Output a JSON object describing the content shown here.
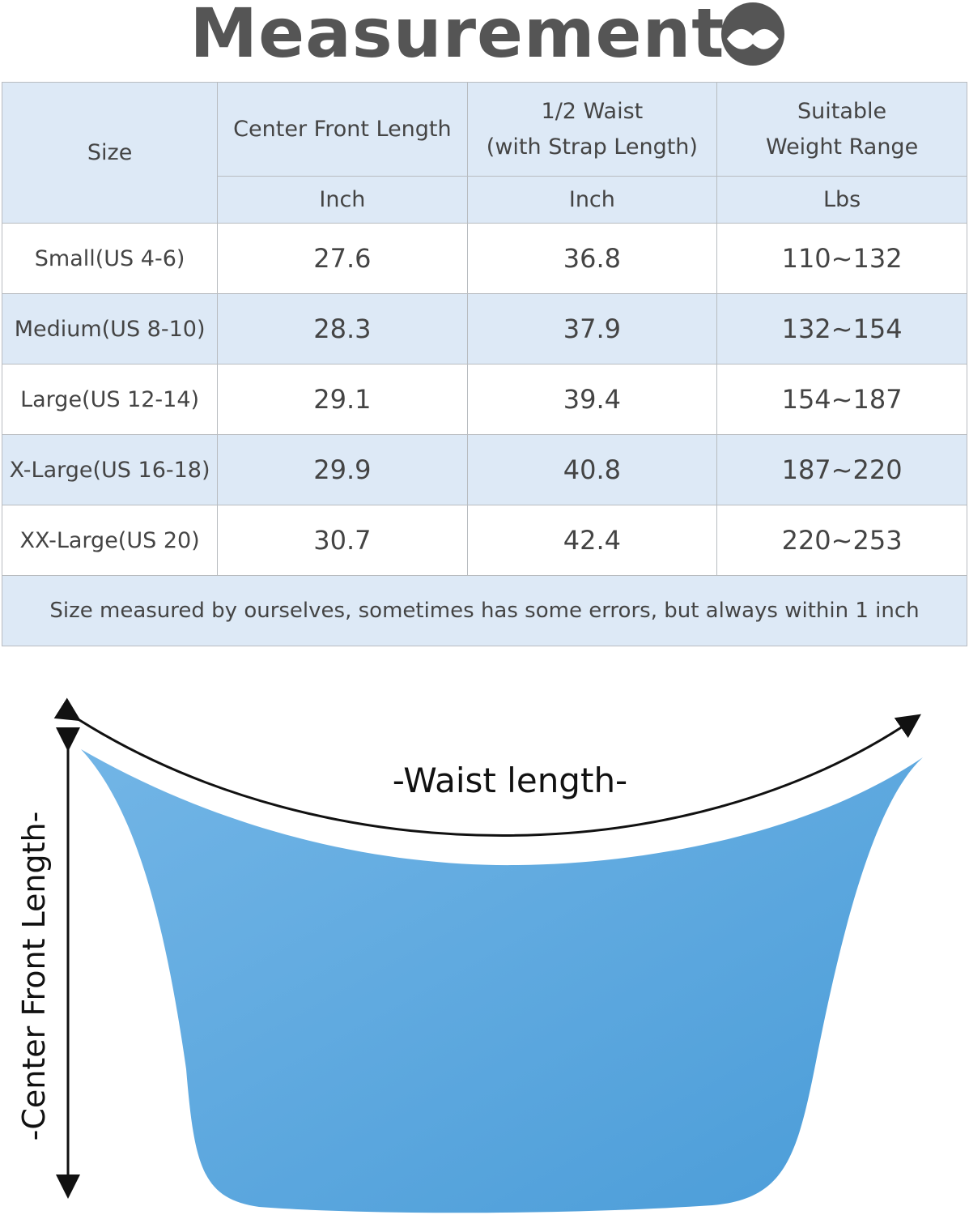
{
  "header": {
    "title": "Measurement"
  },
  "table": {
    "columns": [
      {
        "lines": [
          "Size"
        ],
        "unit": null
      },
      {
        "lines": [
          "Center Front Length"
        ],
        "unit": "Inch"
      },
      {
        "lines": [
          "1/2 Waist",
          "(with Strap Length)"
        ],
        "unit": "Inch"
      },
      {
        "lines": [
          "Suitable",
          "Weight Range"
        ],
        "unit": "Lbs"
      }
    ],
    "rows": [
      [
        "Small(US 4-6)",
        "27.6",
        "36.8",
        "110~132"
      ],
      [
        "Medium(US 8-10)",
        "28.3",
        "37.9",
        "132~154"
      ],
      [
        "Large(US 12-14)",
        "29.1",
        "39.4",
        "154~187"
      ],
      [
        "X-Large(US 16-18)",
        "29.9",
        "40.8",
        "187~220"
      ],
      [
        "XX-Large(US 20)",
        "30.7",
        "42.4",
        "220~253"
      ]
    ],
    "note": "Size measured by ourselves, sometimes has some errors, but always within 1 inch"
  },
  "diagram": {
    "waist_label": "-Waist length-",
    "length_label": "-Center Front Length-"
  }
}
